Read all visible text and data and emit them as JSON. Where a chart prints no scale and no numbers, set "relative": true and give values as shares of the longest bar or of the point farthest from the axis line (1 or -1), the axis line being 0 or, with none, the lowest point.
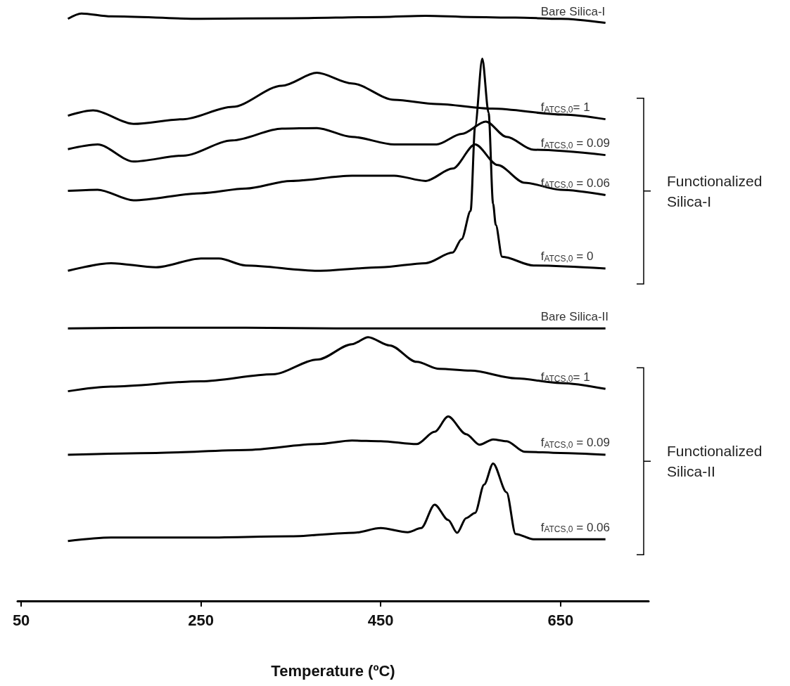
{
  "chart_data": {
    "type": "line",
    "relative": true,
    "xlabel": "Temperature (ºC)",
    "xlim": [
      46,
      748
    ],
    "xticks": [
      50,
      250,
      450,
      650
    ],
    "grid": false,
    "legend": false,
    "marker": "none",
    "line_style": "solid",
    "tick_labels": "x",
    "annotations": [
      "Functionalized Silica-I",
      "Functionalized Silica-II"
    ],
    "series": [
      {
        "name": "Bare Silica-I",
        "color": "#000000",
        "x": [
          102,
          117,
          150,
          250,
          350,
          450,
          500,
          550,
          600,
          650,
          700
        ],
        "values": [
          0.991,
          1.0,
          0.995,
          0.991,
          0.992,
          0.994,
          0.996,
          0.994,
          0.993,
          0.991,
          0.984
        ]
      },
      {
        "name": "f$_{ATCS,0}$= 1",
        "color": "#000000",
        "x": [
          102,
          130,
          175,
          230,
          285,
          340,
          379,
          418,
          465,
          512,
          574,
          653,
          700
        ],
        "values": [
          0.826,
          0.835,
          0.812,
          0.82,
          0.841,
          0.877,
          0.899,
          0.881,
          0.853,
          0.846,
          0.838,
          0.828,
          0.82
        ]
      },
      {
        "name": "f$_{ATCS,0}$ = 0.09",
        "color": "#000000",
        "x": [
          102,
          135,
          175,
          230,
          285,
          340,
          379,
          418,
          465,
          512,
          540,
          567,
          590,
          620,
          700
        ],
        "values": [
          0.769,
          0.777,
          0.748,
          0.758,
          0.784,
          0.804,
          0.805,
          0.79,
          0.777,
          0.777,
          0.795,
          0.816,
          0.79,
          0.768,
          0.759
        ]
      },
      {
        "name": "f$_{ATCS,0}$ = 0.06",
        "color": "#000000",
        "x": [
          102,
          135,
          175,
          250,
          300,
          350,
          418,
          465,
          500,
          530,
          555,
          580,
          610,
          650,
          700
        ],
        "values": [
          0.698,
          0.7,
          0.682,
          0.694,
          0.702,
          0.715,
          0.724,
          0.724,
          0.715,
          0.736,
          0.777,
          0.742,
          0.712,
          0.7,
          0.691
        ]
      },
      {
        "name": "f$_{ATCS,0}$ = 0",
        "color": "#000000",
        "x": [
          102,
          150,
          200,
          250,
          270,
          300,
          380,
          450,
          500,
          530,
          540,
          550,
          555,
          563,
          570,
          575,
          578,
          585,
          620,
          700
        ],
        "values": [
          0.562,
          0.575,
          0.568,
          0.583,
          0.583,
          0.571,
          0.562,
          0.568,
          0.575,
          0.593,
          0.616,
          0.664,
          0.808,
          0.923,
          0.831,
          0.676,
          0.64,
          0.586,
          0.571,
          0.566
        ]
      },
      {
        "name": "Bare Silica-II",
        "color": "#000000",
        "x": [
          102,
          200,
          300,
          400,
          500,
          600,
          700
        ],
        "values": [
          0.464,
          0.465,
          0.465,
          0.464,
          0.464,
          0.464,
          0.464
        ]
      },
      {
        "name": "f$_{ATCS,0}$= 1",
        "color": "#000000",
        "x": [
          102,
          150,
          250,
          330,
          380,
          418,
          436,
          460,
          490,
          515,
          550,
          600,
          650,
          700
        ],
        "values": [
          0.357,
          0.365,
          0.374,
          0.386,
          0.411,
          0.437,
          0.449,
          0.435,
          0.407,
          0.395,
          0.392,
          0.379,
          0.371,
          0.361
        ]
      },
      {
        "name": "f$_{ATCS,0}$ = 0.09",
        "color": "#000000",
        "x": [
          102,
          200,
          300,
          380,
          418,
          450,
          490,
          510,
          525,
          545,
          560,
          575,
          590,
          610,
          650,
          700
        ],
        "values": [
          0.249,
          0.252,
          0.257,
          0.267,
          0.273,
          0.272,
          0.267,
          0.288,
          0.314,
          0.284,
          0.266,
          0.275,
          0.272,
          0.254,
          0.252,
          0.249
        ]
      },
      {
        "name": "f$_{ATCS,0}$ = 0.06",
        "color": "#000000",
        "x": [
          102,
          150,
          250,
          350,
          420,
          450,
          480,
          495,
          510,
          525,
          535,
          545,
          555,
          565,
          575,
          590,
          600,
          620,
          700
        ],
        "values": [
          0.102,
          0.108,
          0.108,
          0.11,
          0.116,
          0.124,
          0.117,
          0.124,
          0.164,
          0.138,
          0.116,
          0.141,
          0.15,
          0.198,
          0.234,
          0.185,
          0.114,
          0.105,
          0.105
        ]
      }
    ]
  }
}
